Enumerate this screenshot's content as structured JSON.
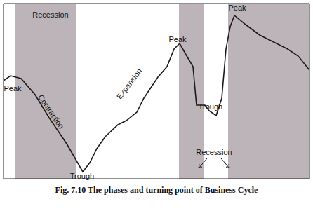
{
  "chart_data": {
    "type": "line",
    "caption": "Fig. 7.10 The phases and turning point of Business Cycle",
    "x": [
      0,
      10,
      25,
      45,
      65,
      90,
      113,
      123,
      133,
      145,
      163,
      175,
      190,
      200,
      220,
      233,
      243,
      251,
      260,
      270,
      275,
      287,
      293,
      303,
      311,
      317,
      323,
      329,
      345,
      365,
      385,
      405,
      420,
      436
    ],
    "values": [
      140,
      147,
      143,
      120,
      87,
      50,
      10,
      23,
      43,
      60,
      77,
      83,
      95,
      115,
      145,
      160,
      185,
      193,
      177,
      160,
      105,
      105,
      97,
      90,
      115,
      185,
      217,
      233,
      220,
      205,
      195,
      185,
      175,
      155
    ],
    "color": "#1a1a1a",
    "xlim": [
      0,
      436
    ],
    "ylim": [
      0,
      250
    ],
    "tick_labels": false,
    "shaded_regions": [
      [
        17,
        103
      ],
      [
        250,
        285
      ],
      [
        320,
        436
      ]
    ],
    "annotations": [
      {
        "text": "Recession",
        "x": 67,
        "y": 233
      },
      {
        "text": "Peak",
        "x": 13,
        "y": 128
      },
      {
        "text": "Contraction",
        "x": 67,
        "y": 95
      },
      {
        "text": "Trough",
        "x": 112,
        "y": 3
      },
      {
        "text": "Expansion",
        "x": 180,
        "y": 135
      },
      {
        "text": "Peak",
        "x": 248,
        "y": 198
      },
      {
        "text": "Trough",
        "x": 295,
        "y": 102
      },
      {
        "text": "Peak",
        "x": 333,
        "y": 243
      },
      {
        "text": "Recession",
        "x": 300,
        "y": 37
      }
    ]
  }
}
